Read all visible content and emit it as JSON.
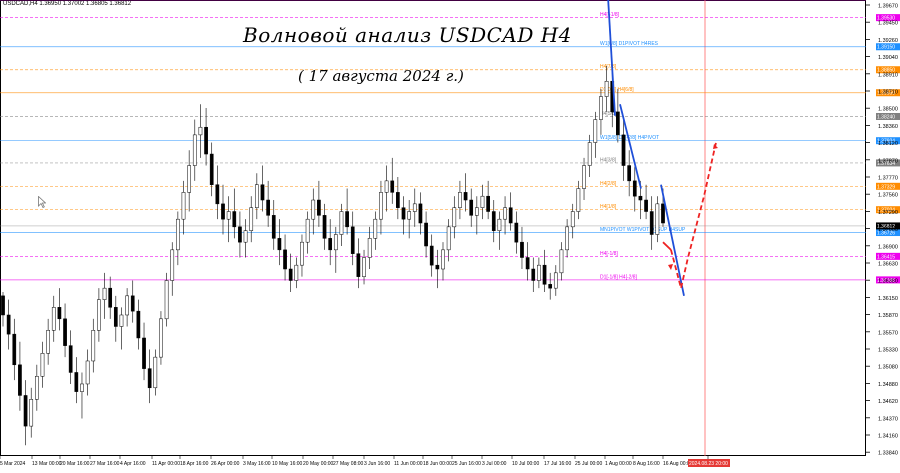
{
  "header": {
    "symbol_info": "USDCAD,H4  1.36950 1.37002 1.36805 1.36812"
  },
  "title": {
    "main": "Волновой анализ USDCAD H4",
    "sub": "( 17 августа 2024 г.)"
  },
  "colors": {
    "candle": "#000000",
    "wave_blue": "#1f4fd8",
    "forecast_red": "#ee2222",
    "level_blue": "#1e90ff",
    "level_orange": "#ff8c00",
    "level_magenta": "#ee00ee",
    "level_gray": "#808080"
  },
  "icons": {
    "cursor": "arrow-cursor-icon"
  },
  "chart_data": {
    "type": "candlestick",
    "price_labels": [
      "1.39670",
      "1.39450",
      "1.39260",
      "1.39040",
      "1.38910",
      "1.38710",
      "1.38500",
      "1.38360",
      "1.38120",
      "1.37870",
      "1.37770",
      "1.37560",
      "1.37290",
      "1.37060",
      "1.36900",
      "1.36630",
      "1.36380",
      "1.36150",
      "1.35870",
      "1.35570",
      "1.35330",
      "1.35080",
      "1.34880",
      "1.34620",
      "1.34370",
      "1.34160",
      "1.33840"
    ],
    "x_labels": [
      "5 Mar 2024",
      "13 Mar 00:00",
      "20 Mar 16:00",
      "27 Mar 16:00",
      "4 Apr 16:00",
      "11 Apr 00:00",
      "18 Apr 16:00",
      "26 Apr 00:00",
      "3 May 16:00",
      "10 May 16:00",
      "20 May 00:00",
      "27 May 08:00",
      "3 Jun 16:00",
      "11 Jun 00:00",
      "18 Jun 00:00",
      "25 Jun 16:00",
      "3 Jul 00:00",
      "10 Jul 00:00",
      "17 Jul 16:00",
      "25 Jul 00:00",
      "1 Aug 00:00",
      "8 Aug 16:00",
      "16 Aug 00:00",
      "2024.08.23 20:00"
    ],
    "last_price": "1.36812",
    "levels": [
      {
        "label": "D1[1/8] H4[+2/8]",
        "price": 1.3976,
        "color": "#ee00ee",
        "style": "solid",
        "tag": ""
      },
      {
        "label": "H4[+1/8]",
        "price": 1.3953,
        "color": "#ee00ee",
        "style": "dashed",
        "tag": "1.39530"
      },
      {
        "label": "W1[6/8] D1PIVOT H4RES",
        "price": 1.3915,
        "color": "#1e90ff",
        "style": "solid",
        "tag": "1.39150"
      },
      {
        "label": "H4[7/8]",
        "price": 1.3885,
        "color": "#ff8c00",
        "style": "dashed",
        "tag": "1.38850"
      },
      {
        "label": "D1[0/8] H4[6/8]",
        "price": 1.3855,
        "color": "#ff8c00",
        "style": "solid",
        "tag": "1.38550"
      },
      {
        "label": "H4[5/8]",
        "price": 1.3824,
        "color": "#808080",
        "style": "dashed",
        "tag": "1.38240"
      },
      {
        "label": "W1[5/8] D1[-2/8] H4PIVOT",
        "price": 1.37924,
        "color": "#1e90ff",
        "style": "solid",
        "tag": "1.37924"
      },
      {
        "label": "H4[3/8]",
        "price": 1.37634,
        "color": "#808080",
        "style": "dashed",
        "tag": "1.37634"
      },
      {
        "label": "H4[2/8]",
        "price": 1.37329,
        "color": "#ff8c00",
        "style": "dashed",
        "tag": "1.37329"
      },
      {
        "label": "H4[1/8]",
        "price": 1.37024,
        "color": "#ff8c00",
        "style": "dashed",
        "tag": "1.37024"
      },
      {
        "label": "MN1PIVOT W1PIVOT D1SUP H4SUP",
        "price": 1.36726,
        "color": "#1e90ff",
        "style": "solid",
        "tag": "1.36726"
      },
      {
        "label": "H4[-1/8]",
        "price": 1.36415,
        "color": "#ee00ee",
        "style": "dashed",
        "tag": "1.36415"
      },
      {
        "label": "D1[-1/8] H4[-2/8]",
        "price": 1.36108,
        "color": "#ee00ee",
        "style": "solid",
        "tag": "1.36108"
      }
    ],
    "ohlc": [
      [
        1.359,
        1.3595,
        1.355,
        1.3565
      ],
      [
        1.3565,
        1.3585,
        1.352,
        1.354
      ],
      [
        1.354,
        1.356,
        1.348,
        1.35
      ],
      [
        1.35,
        1.353,
        1.344,
        1.346
      ],
      [
        1.346,
        1.348,
        1.3395,
        1.342
      ],
      [
        1.342,
        1.347,
        1.3405,
        1.3455
      ],
      [
        1.3455,
        1.35,
        1.344,
        1.3485
      ],
      [
        1.3485,
        1.353,
        1.347,
        1.3515
      ],
      [
        1.3515,
        1.356,
        1.35,
        1.3545
      ],
      [
        1.3545,
        1.359,
        1.353,
        1.3575
      ],
      [
        1.3575,
        1.36,
        1.3545,
        1.356
      ],
      [
        1.356,
        1.358,
        1.351,
        1.3525
      ],
      [
        1.3525,
        1.3545,
        1.3475,
        1.349
      ],
      [
        1.349,
        1.351,
        1.345,
        1.3465
      ],
      [
        1.3465,
        1.349,
        1.343,
        1.3475
      ],
      [
        1.3475,
        1.352,
        1.346,
        1.3505
      ],
      [
        1.3505,
        1.356,
        1.349,
        1.3545
      ],
      [
        1.3545,
        1.36,
        1.353,
        1.3585
      ],
      [
        1.3585,
        1.362,
        1.356,
        1.36
      ],
      [
        1.36,
        1.3615,
        1.356,
        1.3575
      ],
      [
        1.3575,
        1.359,
        1.353,
        1.355
      ],
      [
        1.355,
        1.3575,
        1.352,
        1.3565
      ],
      [
        1.3565,
        1.36,
        1.355,
        1.359
      ],
      [
        1.359,
        1.361,
        1.3555,
        1.357
      ],
      [
        1.357,
        1.3585,
        1.352,
        1.3535
      ],
      [
        1.3535,
        1.3555,
        1.348,
        1.3495
      ],
      [
        1.3495,
        1.352,
        1.345,
        1.347
      ],
      [
        1.347,
        1.352,
        1.346,
        1.351
      ],
      [
        1.351,
        1.357,
        1.35,
        1.356
      ],
      [
        1.356,
        1.362,
        1.355,
        1.361
      ],
      [
        1.361,
        1.366,
        1.359,
        1.365
      ],
      [
        1.365,
        1.37,
        1.363,
        1.369
      ],
      [
        1.369,
        1.374,
        1.367,
        1.3725
      ],
      [
        1.3725,
        1.378,
        1.37,
        1.376
      ],
      [
        1.376,
        1.382,
        1.374,
        1.38
      ],
      [
        1.38,
        1.384,
        1.377,
        1.381
      ],
      [
        1.381,
        1.3835,
        1.376,
        1.3775
      ],
      [
        1.3775,
        1.379,
        1.372,
        1.3735
      ],
      [
        1.3735,
        1.376,
        1.369,
        1.371
      ],
      [
        1.371,
        1.3735,
        1.367,
        1.369
      ],
      [
        1.369,
        1.372,
        1.366,
        1.37
      ],
      [
        1.37,
        1.373,
        1.3665,
        1.368
      ],
      [
        1.368,
        1.37,
        1.364,
        1.366
      ],
      [
        1.366,
        1.369,
        1.364,
        1.3675
      ],
      [
        1.3675,
        1.372,
        1.366,
        1.3705
      ],
      [
        1.3705,
        1.375,
        1.369,
        1.3735
      ],
      [
        1.3735,
        1.376,
        1.37,
        1.3715
      ],
      [
        1.3715,
        1.374,
        1.368,
        1.3695
      ],
      [
        1.3695,
        1.3715,
        1.365,
        1.3665
      ],
      [
        1.3665,
        1.369,
        1.363,
        1.365
      ],
      [
        1.365,
        1.367,
        1.361,
        1.3625
      ],
      [
        1.3625,
        1.3645,
        1.3595,
        1.361
      ],
      [
        1.361,
        1.364,
        1.36,
        1.363
      ],
      [
        1.363,
        1.367,
        1.3615,
        1.366
      ],
      [
        1.366,
        1.37,
        1.3645,
        1.369
      ],
      [
        1.369,
        1.373,
        1.367,
        1.3715
      ],
      [
        1.3715,
        1.374,
        1.368,
        1.3695
      ],
      [
        1.3695,
        1.371,
        1.365,
        1.3665
      ],
      [
        1.3665,
        1.369,
        1.363,
        1.365
      ],
      [
        1.365,
        1.368,
        1.362,
        1.367
      ],
      [
        1.367,
        1.371,
        1.3655,
        1.37
      ],
      [
        1.37,
        1.373,
        1.367,
        1.368
      ],
      [
        1.368,
        1.37,
        1.363,
        1.3645
      ],
      [
        1.3645,
        1.3665,
        1.36,
        1.3615
      ],
      [
        1.3615,
        1.365,
        1.3605,
        1.364
      ],
      [
        1.364,
        1.368,
        1.3625,
        1.3665
      ],
      [
        1.3665,
        1.37,
        1.365,
        1.369
      ],
      [
        1.369,
        1.374,
        1.367,
        1.3725
      ],
      [
        1.3725,
        1.376,
        1.37,
        1.374
      ],
      [
        1.374,
        1.377,
        1.371,
        1.3725
      ],
      [
        1.3725,
        1.3745,
        1.369,
        1.3705
      ],
      [
        1.3705,
        1.372,
        1.367,
        1.369
      ],
      [
        1.369,
        1.3715,
        1.3665,
        1.37
      ],
      [
        1.37,
        1.373,
        1.368,
        1.371
      ],
      [
        1.371,
        1.3725,
        1.367,
        1.3685
      ],
      [
        1.3685,
        1.37,
        1.364,
        1.3655
      ],
      [
        1.3655,
        1.367,
        1.3615,
        1.363
      ],
      [
        1.363,
        1.365,
        1.36,
        1.3625
      ],
      [
        1.3625,
        1.366,
        1.361,
        1.365
      ],
      [
        1.365,
        1.369,
        1.3635,
        1.368
      ],
      [
        1.368,
        1.372,
        1.3665,
        1.3705
      ],
      [
        1.3705,
        1.374,
        1.369,
        1.3725
      ],
      [
        1.3725,
        1.375,
        1.37,
        1.3715
      ],
      [
        1.3715,
        1.373,
        1.368,
        1.3695
      ],
      [
        1.3695,
        1.372,
        1.367,
        1.3705
      ],
      [
        1.3705,
        1.3735,
        1.369,
        1.372
      ],
      [
        1.372,
        1.374,
        1.369,
        1.37
      ],
      [
        1.37,
        1.3715,
        1.366,
        1.3675
      ],
      [
        1.3675,
        1.37,
        1.365,
        1.369
      ],
      [
        1.369,
        1.372,
        1.367,
        1.3705
      ],
      [
        1.3705,
        1.3725,
        1.3675,
        1.3685
      ],
      [
        1.3685,
        1.37,
        1.3645,
        1.366
      ],
      [
        1.366,
        1.368,
        1.3625,
        1.364
      ],
      [
        1.364,
        1.366,
        1.361,
        1.3625
      ],
      [
        1.3625,
        1.364,
        1.3595,
        1.361
      ],
      [
        1.361,
        1.364,
        1.36,
        1.363
      ],
      [
        1.363,
        1.365,
        1.3595,
        1.3605
      ],
      [
        1.3605,
        1.362,
        1.3585,
        1.36
      ],
      [
        1.36,
        1.363,
        1.359,
        1.362
      ],
      [
        1.362,
        1.366,
        1.361,
        1.365
      ],
      [
        1.365,
        1.369,
        1.364,
        1.368
      ],
      [
        1.368,
        1.371,
        1.3665,
        1.37
      ],
      [
        1.37,
        1.374,
        1.369,
        1.373
      ],
      [
        1.373,
        1.377,
        1.3715,
        1.376
      ],
      [
        1.376,
        1.38,
        1.3745,
        1.379
      ],
      [
        1.379,
        1.383,
        1.377,
        1.382
      ],
      [
        1.382,
        1.386,
        1.38,
        1.385
      ],
      [
        1.385,
        1.389,
        1.383,
        1.387
      ],
      [
        1.387,
        1.3895,
        1.381,
        1.383
      ],
      [
        1.383,
        1.386,
        1.379,
        1.38
      ],
      [
        1.38,
        1.382,
        1.374,
        1.376
      ],
      [
        1.376,
        1.378,
        1.372,
        1.374
      ],
      [
        1.374,
        1.376,
        1.37,
        1.372
      ],
      [
        1.372,
        1.374,
        1.369,
        1.3715
      ],
      [
        1.3715,
        1.3735,
        1.369,
        1.37
      ],
      [
        1.37,
        1.372,
        1.365,
        1.367
      ],
      [
        1.367,
        1.372,
        1.366,
        1.371
      ],
      [
        1.371,
        1.373,
        1.368,
        1.3685
      ]
    ],
    "wave_lines": [
      {
        "name": "",
        "color": "#1f4fd8",
        "style": "solid",
        "points": [
          [
            608,
            1.398
          ],
          [
            615,
            1.3825
          ]
        ]
      },
      {
        "name": "",
        "color": "#1f4fd8",
        "style": "solid",
        "points": [
          [
            620,
            1.384
          ],
          [
            641,
            1.373
          ]
        ]
      },
      {
        "name": "",
        "color": "#1f4fd8",
        "style": "solid",
        "points": [
          [
            661,
            1.3735
          ],
          [
            684,
            1.359
          ]
        ]
      },
      {
        "name": "",
        "color": "#ee2222",
        "style": "solid",
        "points": [
          [
            663,
            1.366
          ],
          [
            671,
            1.365
          ]
        ]
      },
      {
        "name": "",
        "color": "#ee2222",
        "style": "dashed",
        "points": [
          [
            671,
            1.365
          ],
          [
            681,
            1.36
          ],
          [
            688,
            1.364
          ],
          [
            704,
            1.372
          ],
          [
            716,
            1.379
          ]
        ]
      }
    ]
  }
}
